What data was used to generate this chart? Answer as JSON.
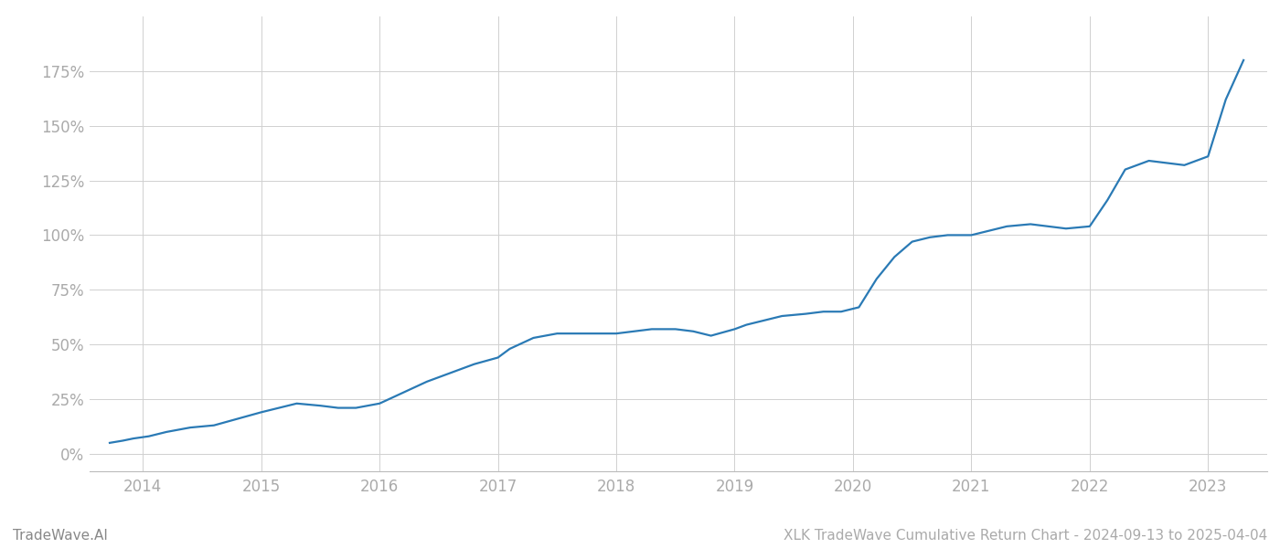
{
  "title": "XLK TradeWave Cumulative Return Chart - 2024-09-13 to 2025-04-04",
  "watermark": "TradeWave.AI",
  "line_color": "#2a7ab5",
  "background_color": "#ffffff",
  "grid_color": "#d0d0d0",
  "x_years": [
    2014,
    2015,
    2016,
    2017,
    2018,
    2019,
    2020,
    2021,
    2022,
    2023
  ],
  "y_ticks": [
    0,
    25,
    50,
    75,
    100,
    125,
    150,
    175
  ],
  "ylim": [
    -8,
    200
  ],
  "data_x": [
    2013.72,
    2013.83,
    2013.92,
    2014.05,
    2014.2,
    2014.4,
    2014.6,
    2014.8,
    2015.0,
    2015.15,
    2015.3,
    2015.5,
    2015.65,
    2015.8,
    2016.0,
    2016.2,
    2016.4,
    2016.6,
    2016.8,
    2017.0,
    2017.1,
    2017.3,
    2017.5,
    2017.65,
    2017.8,
    2018.0,
    2018.15,
    2018.3,
    2018.5,
    2018.65,
    2018.8,
    2019.0,
    2019.1,
    2019.25,
    2019.4,
    2019.6,
    2019.75,
    2019.9,
    2020.05,
    2020.2,
    2020.35,
    2020.5,
    2020.65,
    2020.8,
    2021.0,
    2021.15,
    2021.3,
    2021.5,
    2021.65,
    2021.8,
    2022.0,
    2022.15,
    2022.3,
    2022.5,
    2022.65,
    2022.8,
    2023.0,
    2023.15,
    2023.3
  ],
  "data_y": [
    5,
    6,
    7,
    8,
    10,
    12,
    13,
    16,
    19,
    21,
    23,
    22,
    21,
    21,
    23,
    28,
    33,
    37,
    41,
    44,
    48,
    53,
    55,
    55,
    55,
    55,
    56,
    57,
    57,
    56,
    54,
    57,
    59,
    61,
    63,
    64,
    65,
    65,
    67,
    80,
    90,
    97,
    99,
    100,
    100,
    102,
    104,
    105,
    104,
    103,
    104,
    116,
    130,
    134,
    133,
    132,
    136,
    162,
    180
  ],
  "xlim": [
    2013.55,
    2023.5
  ],
  "title_fontsize": 11,
  "tick_label_color": "#aaaaaa",
  "watermark_color": "#888888",
  "title_color": "#aaaaaa",
  "line_width": 1.6
}
